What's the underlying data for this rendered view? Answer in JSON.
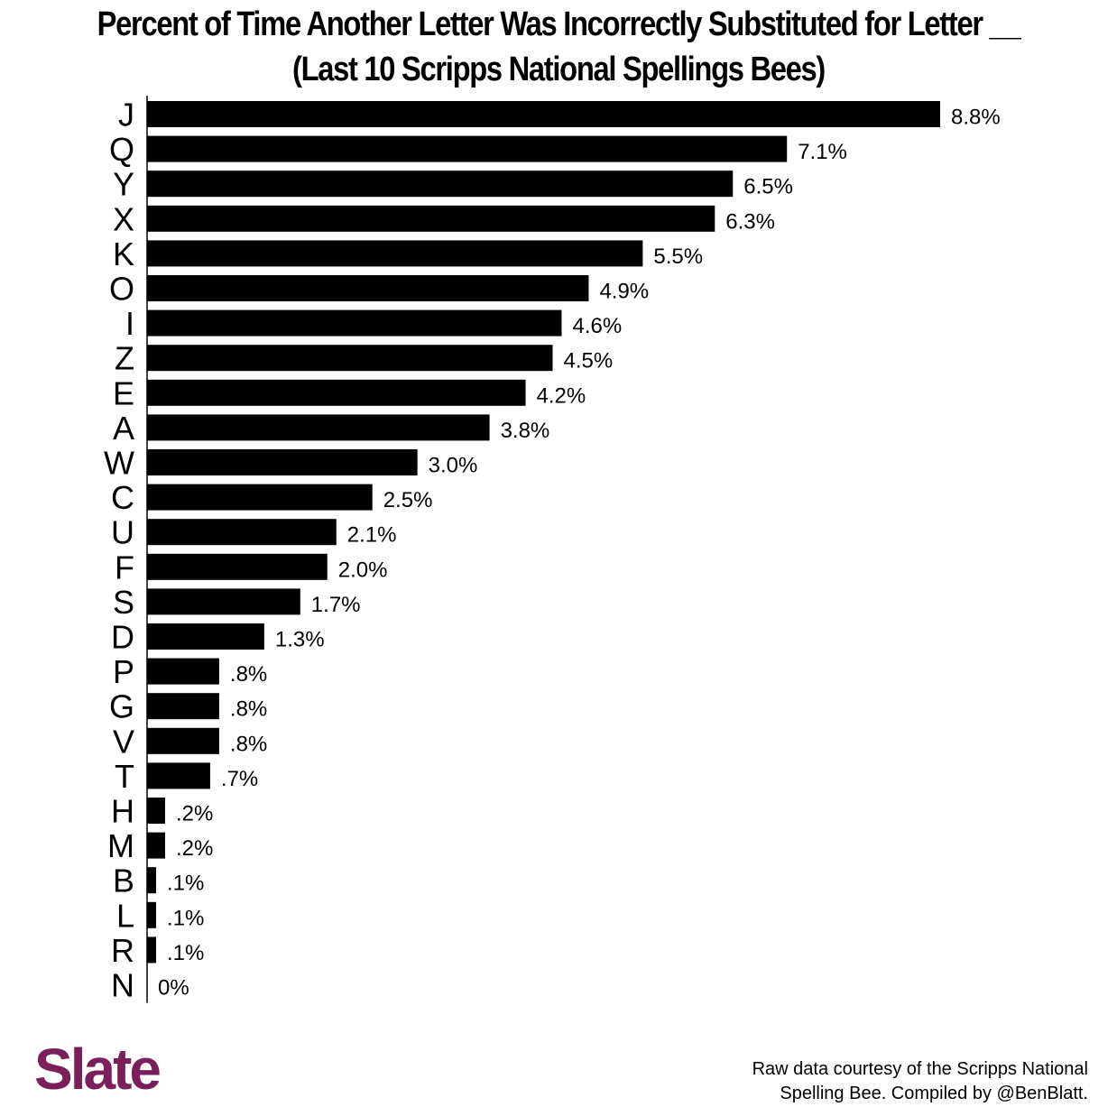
{
  "chart_data": {
    "type": "bar",
    "orientation": "horizontal",
    "title": "Percent of Time Another Letter Was Incorrectly Substituted for Letter __",
    "subtitle": "(Last 10 Scripps National Spellings Bees)",
    "xlabel": "",
    "ylabel": "",
    "grid": false,
    "xlim": [
      0,
      8.8
    ],
    "categories": [
      "J",
      "Q",
      "Y",
      "X",
      "K",
      "O",
      "I",
      "Z",
      "E",
      "A",
      "W",
      "C",
      "U",
      "F",
      "S",
      "D",
      "P",
      "G",
      "V",
      "T",
      "H",
      "M",
      "B",
      "L",
      "R",
      "N"
    ],
    "values": [
      8.8,
      7.1,
      6.5,
      6.3,
      5.5,
      4.9,
      4.6,
      4.5,
      4.2,
      3.8,
      3.0,
      2.5,
      2.1,
      2.0,
      1.7,
      1.3,
      0.8,
      0.8,
      0.8,
      0.7,
      0.2,
      0.2,
      0.1,
      0.1,
      0.1,
      0
    ],
    "value_labels": [
      "8.8%",
      "7.1%",
      "6.5%",
      "6.3%",
      "5.5%",
      "4.9%",
      "4.6%",
      "4.5%",
      "4.2%",
      "3.8%",
      "3.0%",
      "2.5%",
      "2.1%",
      "2.0%",
      "1.7%",
      "1.3%",
      ".8%",
      ".8%",
      ".8%",
      ".7%",
      ".2%",
      ".2%",
      ".1%",
      ".1%",
      ".1%",
      "0%"
    ],
    "bar_color": "#000000"
  },
  "footer": {
    "logo_text": "Slate",
    "logo_color": "#7a1f5c",
    "source_line1": "Raw data courtesy of the Scripps National",
    "source_line2": "Spelling Bee. Compiled by @BenBlatt."
  }
}
